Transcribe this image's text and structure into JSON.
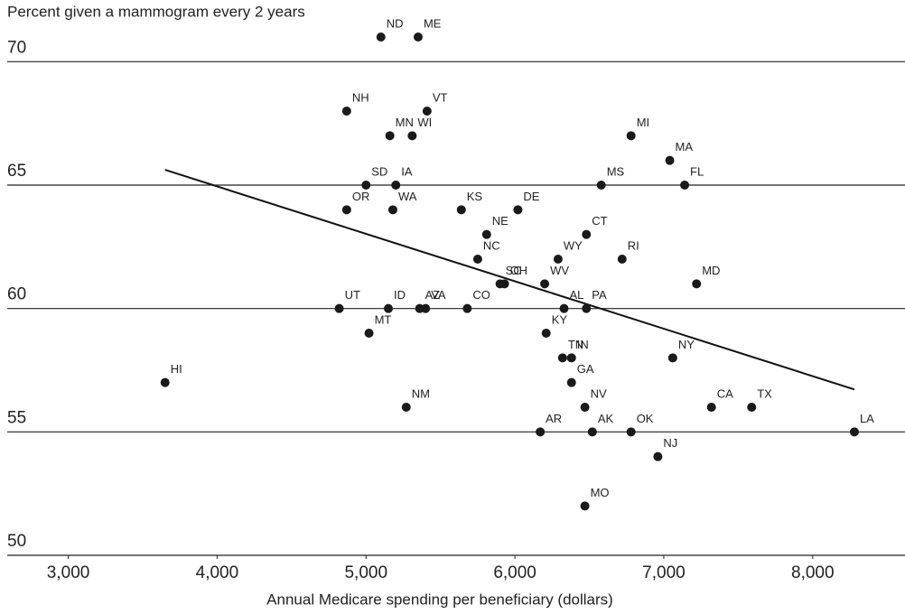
{
  "chart_data": {
    "type": "scatter",
    "title": "Percent given a mammogram every 2 years",
    "x_label": "Annual Medicare spending per beneficiary (dollars)",
    "color": "#1a1a1a",
    "labels": [
      "ND",
      "ME",
      "NH",
      "VT",
      "MN",
      "WI",
      "MI",
      "MA",
      "SD",
      "IA",
      "MS",
      "FL",
      "OR",
      "WA",
      "KS",
      "DE",
      "NE",
      "CT",
      "NC",
      "WY",
      "RI",
      "SC",
      "OH",
      "WV",
      "MD",
      "UT",
      "ID",
      "AZ",
      "VA",
      "CO",
      "AL",
      "PA",
      "MT",
      "KY",
      "TN",
      "IN",
      "NY",
      "HI",
      "GA",
      "NM",
      "NV",
      "CA",
      "TX",
      "AR",
      "AK",
      "OK",
      "LA",
      "NJ",
      "MO"
    ],
    "x": [
      5100,
      5350,
      4870,
      5410,
      5160,
      5310,
      6780,
      7040,
      5000,
      5200,
      6580,
      7140,
      4870,
      5180,
      5640,
      6020,
      5810,
      6480,
      5750,
      6290,
      6720,
      5900,
      5930,
      6200,
      7220,
      4820,
      5150,
      5360,
      5400,
      5680,
      6330,
      6480,
      5020,
      6210,
      6320,
      6380,
      7060,
      3650,
      6380,
      5270,
      6470,
      7320,
      7590,
      6170,
      6520,
      6780,
      8280,
      6960,
      6470
    ],
    "y": [
      71,
      71,
      68,
      68,
      67,
      67,
      67,
      66,
      65,
      65,
      65,
      65,
      64,
      64,
      64,
      64,
      63,
      63,
      62,
      62,
      62,
      61,
      61,
      61,
      61,
      60,
      60,
      60,
      60,
      60,
      60,
      60,
      59,
      59,
      58,
      58,
      58,
      57,
      57,
      56,
      56,
      56,
      56,
      55,
      55,
      55,
      55,
      54,
      52
    ],
    "trendline": {
      "x": [
        3650,
        8280
      ],
      "y": [
        65.62,
        56.72
      ]
    },
    "xlim": [
      2590,
      8620
    ],
    "ylim": [
      50,
      72.5
    ],
    "xticks": [
      {
        "value": 3000,
        "label": "3,000"
      },
      {
        "value": 4000,
        "label": "4,000"
      },
      {
        "value": 5000,
        "label": "5,000"
      },
      {
        "value": 6000,
        "label": "6,000"
      },
      {
        "value": 7000,
        "label": "7,000"
      },
      {
        "value": 8000,
        "label": "8,000"
      }
    ],
    "yticks": [
      50,
      55,
      60,
      65,
      70
    ],
    "grid": true
  }
}
